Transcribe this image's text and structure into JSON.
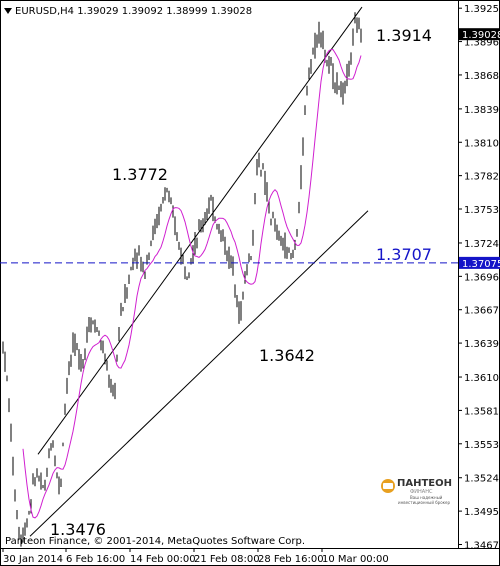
{
  "header": {
    "symbol_info": "EURUSD,H4  1.39029 1.39092 1.38999 1.39028",
    "dropdown_icon": "triangle-down-icon"
  },
  "copyright": "Panteon Finance, © 2001-2014, MetaQuotes Software Corp.",
  "logo": {
    "brand": "ПАНТЕОН",
    "sub1": "ФИНАНС",
    "sub2": "Ваш надежный",
    "sub3": "инвестиционный брокер",
    "accent": "#e8a020"
  },
  "chart_data": {
    "type": "candlestick",
    "symbol": "EURUSD",
    "timeframe": "H4",
    "ohlc_last": {
      "open": 1.39029,
      "high": 1.39092,
      "low": 1.38999,
      "close": 1.39028
    },
    "ylim": [
      1.3464,
      1.3932
    ],
    "y_ticks": [
      "1.39250",
      "1.38965",
      "1.38680",
      "1.38390",
      "1.38105",
      "1.37820",
      "1.37535",
      "1.37245",
      "1.36960",
      "1.36675",
      "1.36390",
      "1.36100",
      "1.35815",
      "1.35530",
      "1.35240",
      "1.34955",
      "1.34670"
    ],
    "x_ticks": [
      "30 Jan 2014",
      "6 Feb 16:00",
      "14 Feb 00:00",
      "21 Feb 08:00",
      "28 Feb 16:00",
      "10 Mar 00:00"
    ],
    "current_price": {
      "label": "1.39028",
      "value": 1.39028
    },
    "hline": {
      "label": "1.37075",
      "value": 1.37075,
      "color": "#1414c8"
    },
    "annotations": [
      {
        "text": "1.3914",
        "value": 1.3914
      },
      {
        "text": "1.3772",
        "value": 1.3772
      },
      {
        "text": "1.3707",
        "value": 1.3707,
        "color": "#1414c8"
      },
      {
        "text": "1.3642",
        "value": 1.3642
      },
      {
        "text": "1.3476",
        "value": 1.3476
      }
    ],
    "channel": {
      "upper": {
        "start": 1.3544,
        "end": 1.3926
      },
      "lower": {
        "start": 1.3474,
        "end": 1.3752
      }
    },
    "ma_color": "#d020d0",
    "candle_color": "#000000",
    "grid": false
  }
}
